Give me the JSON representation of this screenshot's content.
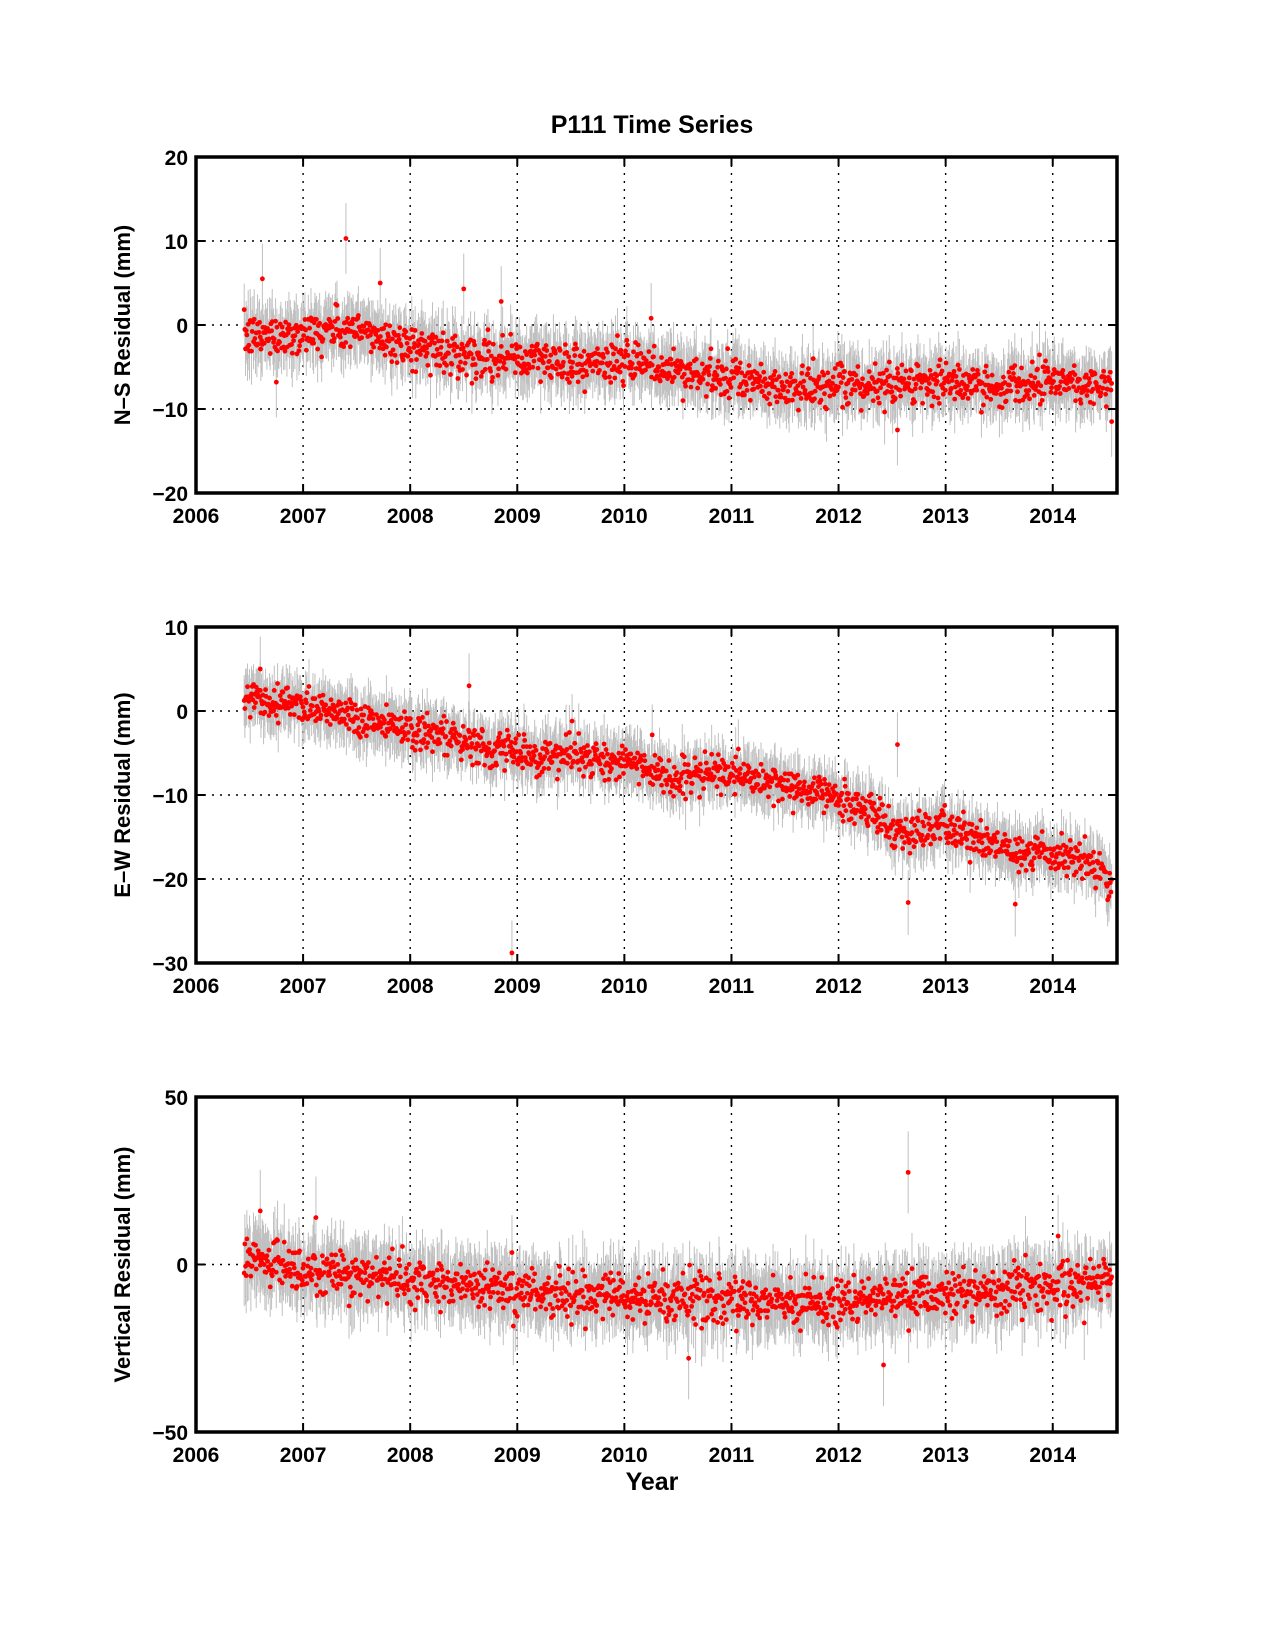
{
  "figure": {
    "title": "P111 Time Series",
    "xlabel": "Year"
  },
  "style": {
    "point_color": "#ff0000",
    "errorbar_color": "#c0c0c0",
    "axis_color": "#000000",
    "grid_style": "dotted"
  },
  "chart_data": [
    {
      "type": "scatter",
      "name": "N-S",
      "ylabel": "N–S Residual (mm)",
      "xlim": [
        2006,
        2014.6
      ],
      "ylim": [
        -20,
        20
      ],
      "xticks": [
        2006,
        2007,
        2008,
        2009,
        2010,
        2011,
        2012,
        2013,
        2014
      ],
      "xtick_labels": [
        "2006",
        "2007",
        "2008",
        "2009",
        "2010",
        "2011",
        "2012",
        "2013",
        "2014"
      ],
      "yticks": [
        -20,
        -10,
        0,
        10,
        20
      ],
      "ytick_labels": [
        "−20",
        "−10",
        "0",
        "10",
        "20"
      ],
      "grid": true,
      "errorbars": true,
      "trend": {
        "x": [
          2006.45,
          2006.7,
          2007.0,
          2007.3,
          2007.6,
          2008.0,
          2008.5,
          2009.0,
          2009.5,
          2010.0,
          2010.5,
          2011.0,
          2011.5,
          2012.0,
          2012.5,
          2012.8,
          2013.0,
          2013.5,
          2013.7,
          2014.0,
          2014.3,
          2014.55
        ],
        "y": [
          -1.5,
          -1.2,
          -1.0,
          -0.5,
          -1.0,
          -2.5,
          -3.5,
          -4.0,
          -4.5,
          -4.5,
          -5.5,
          -6.5,
          -7.5,
          -7.5,
          -7.0,
          -6.5,
          -7.0,
          -7.5,
          -6.5,
          -6.5,
          -7.0,
          -7.5
        ]
      },
      "scatter_sd": 1.2,
      "outliers": [
        {
          "x": 2007.4,
          "y": 10.3
        },
        {
          "x": 2007.72,
          "y": 5.0
        },
        {
          "x": 2006.62,
          "y": 5.5
        },
        {
          "x": 2008.5,
          "y": 4.3
        },
        {
          "x": 2008.85,
          "y": 2.8
        },
        {
          "x": 2010.25,
          "y": 0.8
        },
        {
          "x": 2006.75,
          "y": -6.8
        },
        {
          "x": 2012.55,
          "y": -12.5
        },
        {
          "x": 2014.55,
          "y": -11.5
        }
      ]
    },
    {
      "type": "scatter",
      "name": "E-W",
      "ylabel": "E–W Residual (mm)",
      "xlim": [
        2006,
        2014.6
      ],
      "ylim": [
        -30,
        10
      ],
      "xticks": [
        2006,
        2007,
        2008,
        2009,
        2010,
        2011,
        2012,
        2013,
        2014
      ],
      "xtick_labels": [
        "2006",
        "2007",
        "2008",
        "2009",
        "2010",
        "2011",
        "2012",
        "2013",
        "2014"
      ],
      "yticks": [
        -30,
        -20,
        -10,
        0,
        10
      ],
      "ytick_labels": [
        "−30",
        "−20",
        "−10",
        "0",
        "10"
      ],
      "grid": true,
      "errorbars": true,
      "trend": {
        "x": [
          2006.45,
          2006.7,
          2007.0,
          2007.3,
          2007.6,
          2008.0,
          2008.5,
          2009.0,
          2009.5,
          2010.0,
          2010.5,
          2011.0,
          2011.5,
          2012.0,
          2012.3,
          2012.6,
          2013.0,
          2013.3,
          2013.6,
          2014.0,
          2014.3,
          2014.55
        ],
        "y": [
          1.5,
          1.0,
          1.0,
          0.0,
          -1.0,
          -2.0,
          -4.0,
          -5.0,
          -5.5,
          -6.0,
          -8.0,
          -7.5,
          -9.0,
          -10.5,
          -12.0,
          -14.5,
          -14.0,
          -15.0,
          -17.0,
          -17.0,
          -18.0,
          -20.5
        ]
      },
      "scatter_sd": 1.1,
      "outliers": [
        {
          "x": 2008.95,
          "y": -28.8
        },
        {
          "x": 2012.65,
          "y": -22.8
        },
        {
          "x": 2012.55,
          "y": -4.0
        },
        {
          "x": 2008.55,
          "y": 3.0
        },
        {
          "x": 2006.6,
          "y": 5.0
        },
        {
          "x": 2013.65,
          "y": -23.0
        }
      ]
    },
    {
      "type": "scatter",
      "name": "Vertical",
      "ylabel": "Vertical Residual (mm)",
      "xlim": [
        2006,
        2014.6
      ],
      "ylim": [
        -50,
        50
      ],
      "xticks": [
        2006,
        2007,
        2008,
        2009,
        2010,
        2011,
        2012,
        2013,
        2014
      ],
      "xtick_labels": [
        "2006",
        "2007",
        "2008",
        "2009",
        "2010",
        "2011",
        "2012",
        "2013",
        "2014"
      ],
      "yticks": [
        -50,
        0,
        50
      ],
      "ytick_labels": [
        "−50",
        "0",
        "50"
      ],
      "grid": true,
      "errorbars": true,
      "trend": {
        "x": [
          2006.45,
          2006.7,
          2007.0,
          2007.5,
          2008.0,
          2008.5,
          2009.0,
          2009.5,
          2010.0,
          2010.5,
          2011.0,
          2011.5,
          2012.0,
          2012.5,
          2013.0,
          2013.5,
          2014.0,
          2014.55
        ],
        "y": [
          2.0,
          1.0,
          -2.0,
          -3.0,
          -4.0,
          -6.0,
          -8.0,
          -9.0,
          -10.0,
          -10.0,
          -11.0,
          -11.0,
          -11.0,
          -10.0,
          -9.0,
          -7.0,
          -6.0,
          -5.0
        ]
      },
      "scatter_sd": 3.5,
      "outliers": [
        {
          "x": 2012.65,
          "y": 27.5
        },
        {
          "x": 2012.42,
          "y": -30.0
        },
        {
          "x": 2010.6,
          "y": -28.0
        },
        {
          "x": 2007.12,
          "y": 14.0
        },
        {
          "x": 2006.6,
          "y": 16.0
        },
        {
          "x": 2014.05,
          "y": 8.5
        }
      ]
    }
  ]
}
